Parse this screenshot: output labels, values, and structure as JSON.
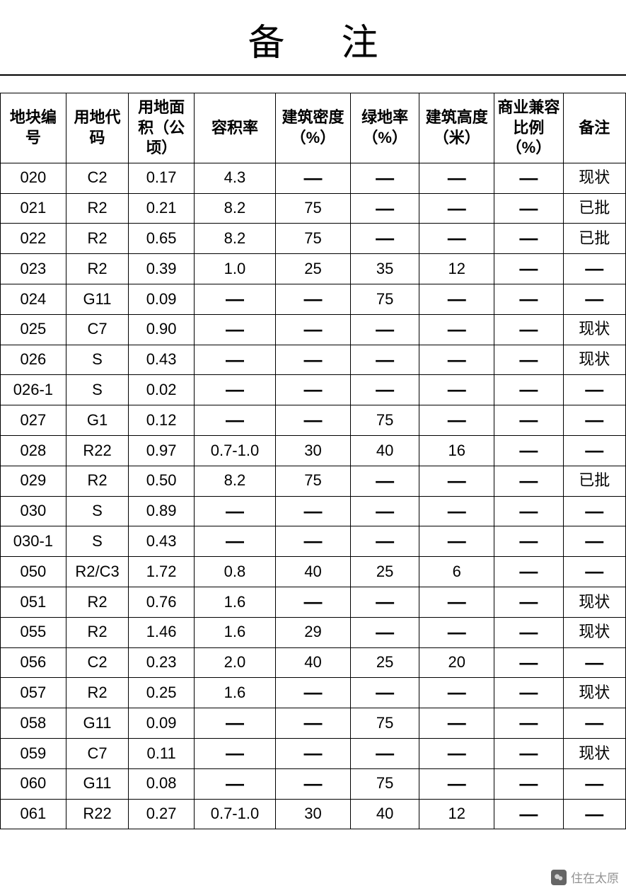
{
  "title": "备注",
  "table": {
    "type": "table",
    "background_color": "#ffffff",
    "border_color": "#000000",
    "text_color": "#000000",
    "header_fontsize": 22,
    "cell_fontsize": 22,
    "dash_char": "—",
    "columns": [
      {
        "label": "地块编号",
        "width_pct": 10.5
      },
      {
        "label": "用地代码",
        "width_pct": 10
      },
      {
        "label": "用地面积（公顷）",
        "width_pct": 10.5
      },
      {
        "label": "容积率",
        "width_pct": 13
      },
      {
        "label": "建筑密度（%）",
        "width_pct": 12
      },
      {
        "label": "绿地率（%）",
        "width_pct": 11
      },
      {
        "label": "建筑高度（米）",
        "width_pct": 12
      },
      {
        "label": "商业兼容比例（%）",
        "width_pct": 11
      },
      {
        "label": "备注",
        "width_pct": 10
      }
    ],
    "rows": [
      [
        "020",
        "C2",
        "0.17",
        "4.3",
        "—",
        "—",
        "—",
        "—",
        "现状"
      ],
      [
        "021",
        "R2",
        "0.21",
        "8.2",
        "75",
        "—",
        "—",
        "—",
        "已批"
      ],
      [
        "022",
        "R2",
        "0.65",
        "8.2",
        "75",
        "—",
        "—",
        "—",
        "已批"
      ],
      [
        "023",
        "R2",
        "0.39",
        "1.0",
        "25",
        "35",
        "12",
        "—",
        "—"
      ],
      [
        "024",
        "G11",
        "0.09",
        "—",
        "—",
        "75",
        "—",
        "—",
        "—"
      ],
      [
        "025",
        "C7",
        "0.90",
        "—",
        "—",
        "—",
        "—",
        "—",
        "现状"
      ],
      [
        "026",
        "S",
        "0.43",
        "—",
        "—",
        "—",
        "—",
        "—",
        "现状"
      ],
      [
        "026-1",
        "S",
        "0.02",
        "—",
        "—",
        "—",
        "—",
        "—",
        "—"
      ],
      [
        "027",
        "G1",
        "0.12",
        "—",
        "—",
        "75",
        "—",
        "—",
        "—"
      ],
      [
        "028",
        "R22",
        "0.97",
        "0.7-1.0",
        "30",
        "40",
        "16",
        "—",
        "—"
      ],
      [
        "029",
        "R2",
        "0.50",
        "8.2",
        "75",
        "—",
        "—",
        "—",
        "已批"
      ],
      [
        "030",
        "S",
        "0.89",
        "—",
        "—",
        "—",
        "—",
        "—",
        "—"
      ],
      [
        "030-1",
        "S",
        "0.43",
        "—",
        "—",
        "—",
        "—",
        "—",
        "—"
      ],
      [
        "050",
        "R2/C3",
        "1.72",
        "0.8",
        "40",
        "25",
        "6",
        "—",
        "—"
      ],
      [
        "051",
        "R2",
        "0.76",
        "1.6",
        "—",
        "—",
        "—",
        "—",
        "现状"
      ],
      [
        "055",
        "R2",
        "1.46",
        "1.6",
        "29",
        "—",
        "—",
        "—",
        "现状"
      ],
      [
        "056",
        "C2",
        "0.23",
        "2.0",
        "40",
        "25",
        "20",
        "—",
        "—"
      ],
      [
        "057",
        "R2",
        "0.25",
        "1.6",
        "—",
        "—",
        "—",
        "—",
        "现状"
      ],
      [
        "058",
        "G11",
        "0.09",
        "—",
        "—",
        "75",
        "—",
        "—",
        "—"
      ],
      [
        "059",
        "C7",
        "0.11",
        "—",
        "—",
        "—",
        "—",
        "—",
        "现状"
      ],
      [
        "060",
        "G11",
        "0.08",
        "—",
        "—",
        "75",
        "—",
        "—",
        "—"
      ],
      [
        "061",
        "R22",
        "0.27",
        "0.7-1.0",
        "30",
        "40",
        "12",
        "—",
        "—"
      ]
    ]
  },
  "watermark": {
    "text": "住在太原",
    "icon_bg": "#555555",
    "text_color": "#888888"
  }
}
